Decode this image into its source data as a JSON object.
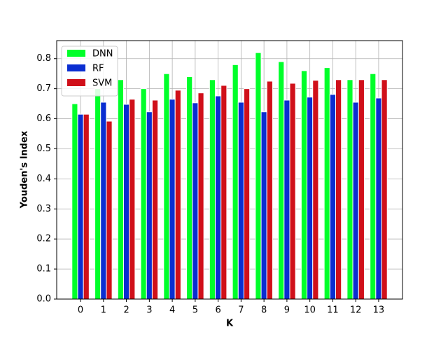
{
  "chart_data": {
    "type": "bar",
    "xlabel": "K",
    "ylabel": "Youden's Index",
    "categories": [
      "0",
      "1",
      "2",
      "3",
      "4",
      "5",
      "6",
      "7",
      "8",
      "9",
      "10",
      "11",
      "12",
      "13"
    ],
    "series": [
      {
        "name": "DNN",
        "color": "#00ff2a",
        "values": [
          0.65,
          0.7,
          0.73,
          0.7,
          0.75,
          0.74,
          0.73,
          0.78,
          0.82,
          0.79,
          0.76,
          0.77,
          0.73,
          0.75
        ]
      },
      {
        "name": "RF",
        "color": "#0a2ed1",
        "values": [
          0.615,
          0.655,
          0.648,
          0.623,
          0.665,
          0.653,
          0.676,
          0.655,
          0.623,
          0.662,
          0.672,
          0.681,
          0.655,
          0.669
        ]
      },
      {
        "name": "SVM",
        "color": "#d0101a",
        "values": [
          0.615,
          0.592,
          0.665,
          0.662,
          0.695,
          0.686,
          0.711,
          0.7,
          0.725,
          0.718,
          0.728,
          0.73,
          0.73,
          0.73
        ]
      }
    ],
    "ylim": [
      0,
      0.86
    ],
    "yticks": [
      {
        "value": 0,
        "label": "0.0"
      },
      0.1,
      0.2,
      0.3,
      0.4,
      0.5,
      0.6,
      0.7,
      0.8
    ],
    "grid": true,
    "legend": "upper left"
  }
}
